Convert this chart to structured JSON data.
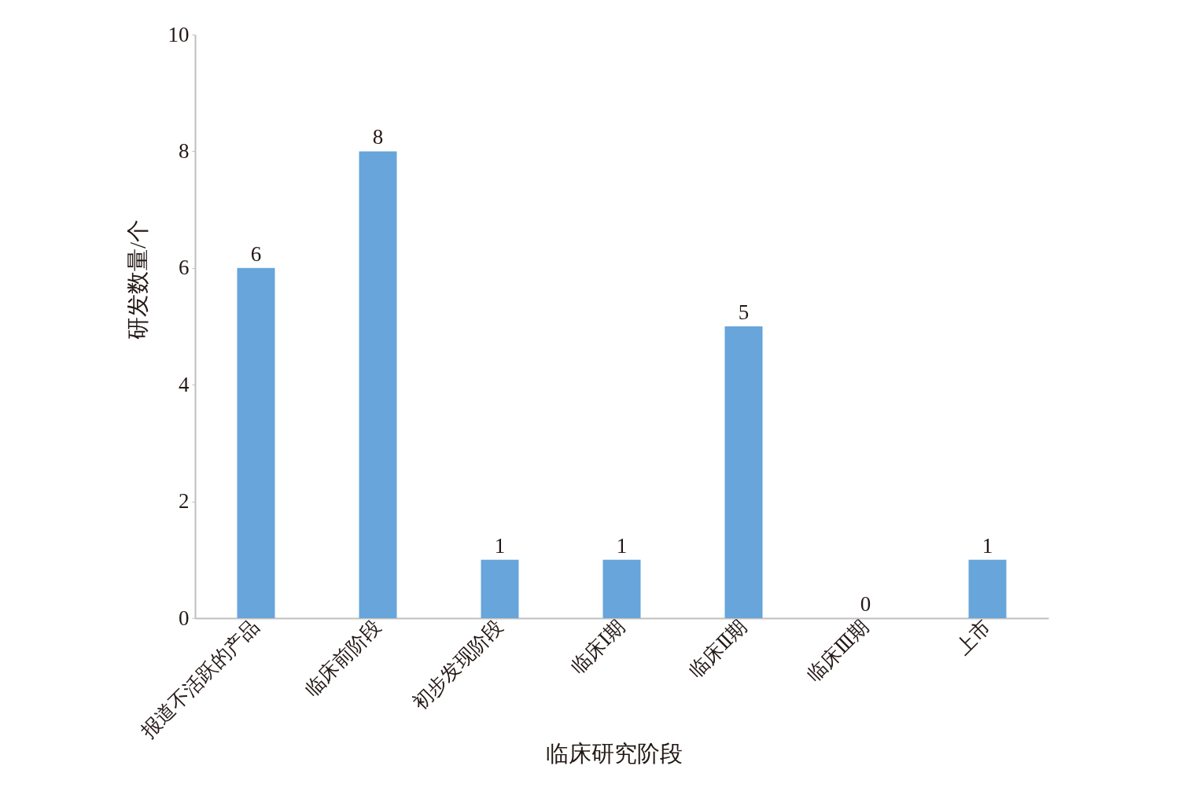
{
  "chart_data": {
    "type": "bar",
    "xlabel": "临床研究阶段",
    "ylabel": "研发数量/个",
    "categories": [
      "报道不活跃的产品",
      "临床前阶段",
      "初步发现阶段",
      "临床Ⅰ期",
      "临床Ⅱ期",
      "临床Ⅲ期",
      "上市"
    ],
    "values": [
      6,
      8,
      1,
      1,
      5,
      0,
      1
    ],
    "color": "#67a5db",
    "ylim": [
      0,
      10
    ],
    "yticks": [
      0,
      2,
      4,
      6,
      8,
      10
    ],
    "data_labels": true
  }
}
